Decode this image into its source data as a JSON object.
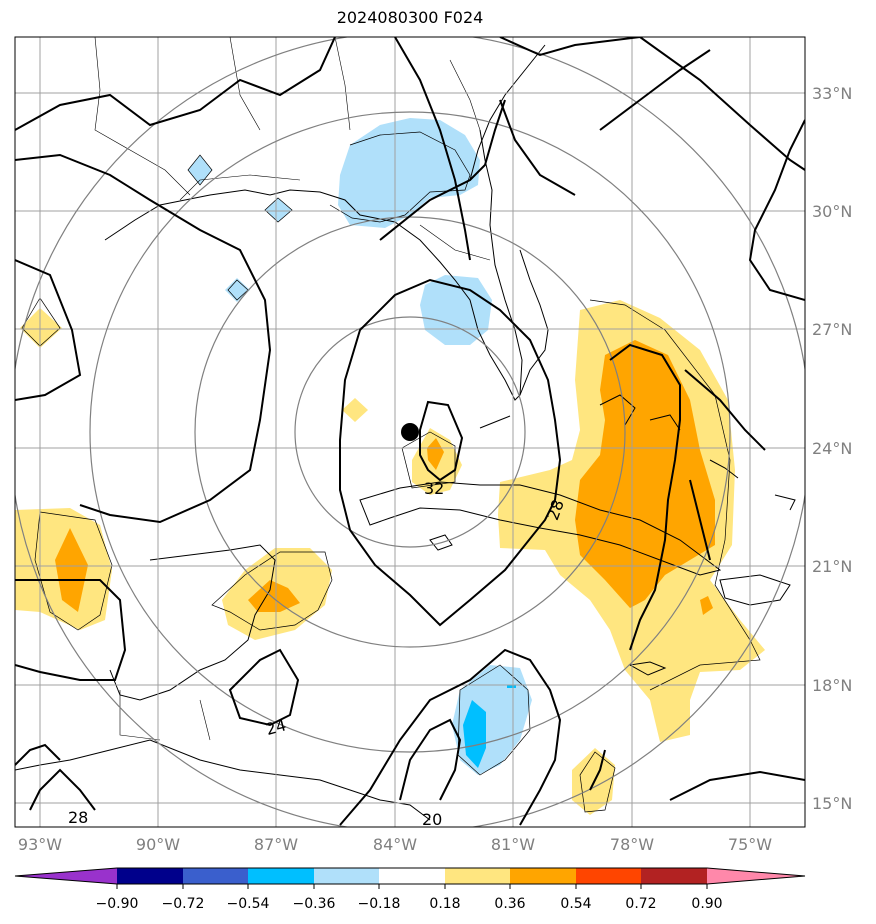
{
  "title": "2024080300 F024",
  "lat_labels": [
    "33°N",
    "30°N",
    "27°N",
    "24°N",
    "21°N",
    "18°N",
    "15°N"
  ],
  "lon_labels": [
    "93°W",
    "90°W",
    "87°W",
    "84°W",
    "81°W",
    "78°W",
    "75°W"
  ],
  "contour_labels": [
    "32",
    "28",
    "24",
    "28",
    "20"
  ],
  "colorbar": {
    "ticks": [
      "−0.90",
      "−0.72",
      "−0.54",
      "−0.36",
      "−0.18",
      "0.18",
      "0.36",
      "0.54",
      "0.72",
      "0.90"
    ],
    "colors": [
      "#9932cc",
      "#00008b",
      "#3a5fcd",
      "#00bfff",
      "#b0e0fa",
      "#ffffff",
      "#ffe680",
      "#ffa500",
      "#ff4500",
      "#b22222",
      "#ff88aa"
    ]
  },
  "colors": {
    "light_blue": "#b0e0fa",
    "cyan": "#00bfff",
    "yellow": "#ffe680",
    "orange": "#ffa500",
    "grid": "#a0a0a0",
    "rings": "#808080"
  }
}
